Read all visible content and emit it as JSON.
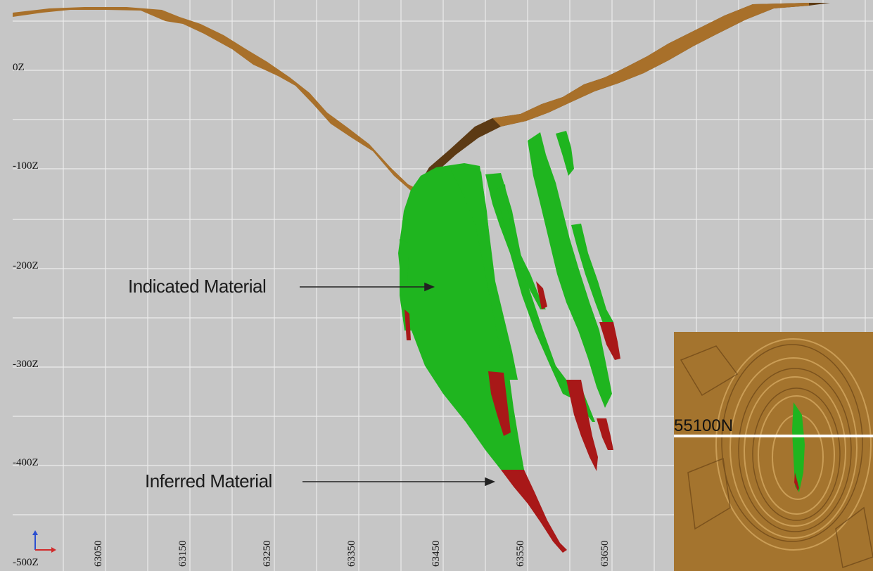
{
  "section_view": {
    "elevation_labels": [
      "0Z",
      "-100Z",
      "-200Z",
      "-300Z",
      "-400Z",
      "-500Z"
    ],
    "easting_labels": [
      "63050",
      "63150",
      "63250",
      "63350",
      "63450",
      "63550",
      "63650"
    ],
    "callouts": {
      "indicated": "Indicated Material",
      "inferred": "Inferred Material"
    },
    "inset_label": "55100N",
    "colors": {
      "background": "#c6c6c6",
      "grid": "#ececec",
      "topography": "#a8702a",
      "topography_dark": "#5c3a14",
      "indicated": "#1fb51f",
      "inferred": "#a81818",
      "inset_base": "#a4742e"
    }
  }
}
